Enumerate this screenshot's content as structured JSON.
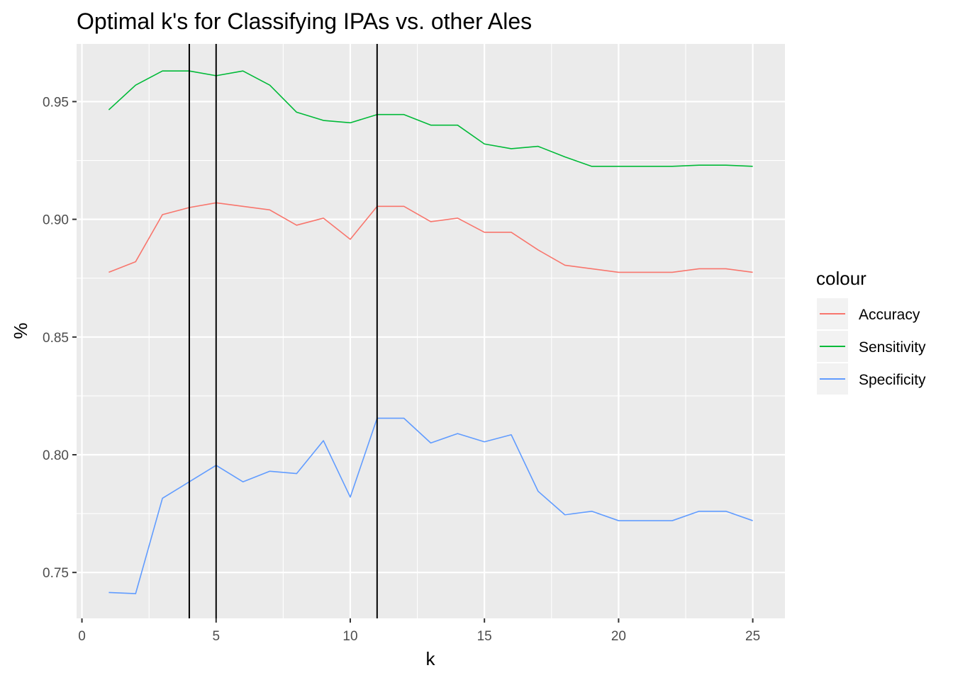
{
  "chart_data": {
    "type": "line",
    "title": "Optimal k's for Classifying IPAs vs. other Ales",
    "xlabel": "k",
    "ylabel": "%",
    "xlim": [
      -0.2,
      26.2
    ],
    "ylim": [
      0.7305,
      0.9745
    ],
    "x_ticks": [
      0,
      5,
      10,
      15,
      20,
      25
    ],
    "y_ticks": [
      0.75,
      0.8,
      0.85,
      0.9,
      0.95
    ],
    "x_tick_labels": [
      "0",
      "5",
      "10",
      "15",
      "20",
      "25"
    ],
    "y_tick_labels": [
      "0.75",
      "0.80",
      "0.85",
      "0.90",
      "0.95"
    ],
    "grid": true,
    "legend": {
      "title": "colour",
      "position": "right"
    },
    "x": [
      1,
      2,
      3,
      4,
      5,
      6,
      7,
      8,
      9,
      10,
      11,
      12,
      13,
      14,
      15,
      16,
      17,
      18,
      19,
      20,
      21,
      22,
      23,
      24,
      25
    ],
    "series": [
      {
        "name": "Accuracy",
        "color": "#F8766D",
        "values": [
          0.8775,
          0.882,
          0.902,
          0.905,
          0.907,
          0.9055,
          0.904,
          0.8975,
          0.9005,
          0.8915,
          0.9055,
          0.9055,
          0.899,
          0.9005,
          0.8945,
          0.8945,
          0.887,
          0.8805,
          0.879,
          0.8775,
          0.8775,
          0.8775,
          0.879,
          0.879,
          0.8775
        ]
      },
      {
        "name": "Sensitivity",
        "color": "#00BA38",
        "values": [
          0.9465,
          0.957,
          0.963,
          0.963,
          0.961,
          0.963,
          0.957,
          0.9455,
          0.942,
          0.941,
          0.9445,
          0.9445,
          0.94,
          0.94,
          0.932,
          0.93,
          0.931,
          0.9265,
          0.9225,
          0.9225,
          0.9225,
          0.9225,
          0.923,
          0.923,
          0.9225
        ]
      },
      {
        "name": "Specificity",
        "color": "#619CFF",
        "values": [
          0.7415,
          0.741,
          0.7815,
          0.7885,
          0.7955,
          0.7885,
          0.793,
          0.792,
          0.806,
          0.782,
          0.8155,
          0.8155,
          0.805,
          0.809,
          0.8055,
          0.8085,
          0.7845,
          0.7745,
          0.776,
          0.772,
          0.772,
          0.772,
          0.776,
          0.776,
          0.772
        ]
      }
    ],
    "vlines": [
      4,
      5,
      11
    ]
  }
}
